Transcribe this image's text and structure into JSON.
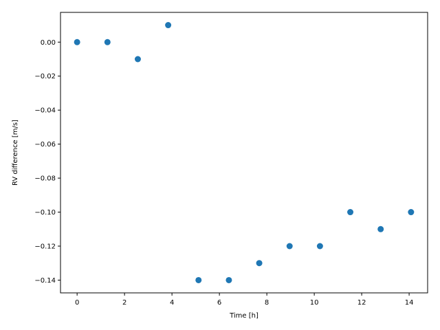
{
  "chart_data": {
    "type": "scatter",
    "xlabel": "Time [h]",
    "ylabel": "RV difference [m/s]",
    "xlim": [
      -0.7,
      14.78
    ],
    "ylim": [
      -0.1475,
      0.0175
    ],
    "xticks": [
      0,
      2,
      4,
      6,
      8,
      10,
      12,
      14
    ],
    "xtick_labels": [
      "0",
      "2",
      "4",
      "6",
      "8",
      "10",
      "12",
      "14"
    ],
    "yticks": [
      0.0,
      -0.02,
      -0.04,
      -0.06,
      -0.08,
      -0.1,
      -0.12,
      -0.14
    ],
    "ytick_labels": [
      "0.00",
      "−0.02",
      "−0.04",
      "−0.06",
      "−0.08",
      "−0.10",
      "−0.12",
      "−0.14"
    ],
    "grid": false,
    "marker_color": "#1f77b4",
    "series": [
      {
        "x": [
          0.0,
          1.28,
          2.56,
          3.84,
          5.12,
          6.4,
          7.68,
          8.96,
          10.24,
          11.52,
          12.8,
          14.08
        ],
        "y": [
          0.0,
          0.0,
          -0.01,
          0.01,
          -0.14,
          -0.14,
          -0.13,
          -0.12,
          -0.12,
          -0.1,
          -0.11,
          -0.1
        ]
      }
    ]
  }
}
